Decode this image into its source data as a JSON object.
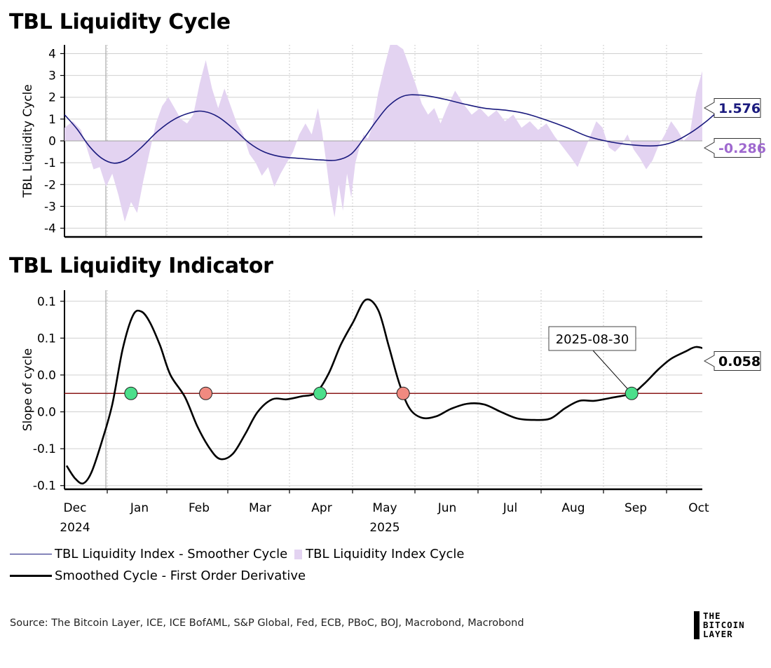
{
  "titles": {
    "top": "TBL Liquidity Cycle",
    "bottom": "TBL Liquidity Indicator"
  },
  "colors": {
    "smoother": "#1a1a7e",
    "cycle_fill": "#e3d3f1",
    "cycle_label": "#9f69cf",
    "derivative": "#000000",
    "zero_line": "#8b1a1a",
    "bullish_dot": "#4cdf8b",
    "bearish_dot": "#f08a80"
  },
  "time_axis": {
    "months": [
      "Dec",
      "Jan",
      "Feb",
      "Mar",
      "Apr",
      "May",
      "Jun",
      "Jul",
      "Aug",
      "Sep",
      "Oct"
    ],
    "years": [
      {
        "month": "Dec",
        "label": "2024"
      },
      {
        "month": "May",
        "label": "2025"
      }
    ]
  },
  "chart_data": [
    {
      "type": "area",
      "title": "TBL Liquidity Cycle",
      "ylabel": "TBL Liquidity Cycle",
      "ylim": [
        -4.4,
        4.4
      ],
      "yticks": [
        "4",
        "3",
        "2",
        "1",
        "0",
        "-1",
        "-2",
        "-3",
        "-4"
      ],
      "xlim": [
        "2024-11-30",
        "2025-10-03"
      ],
      "grid": true,
      "series": [
        {
          "name": "TBL Liquidity Index - Smoother Cycle",
          "type": "line",
          "last_value_label": "1.576",
          "points": [
            [
              "2024-11-30",
              1.2
            ],
            [
              "2024-12-06",
              0.55
            ],
            [
              "2024-12-12",
              -0.25
            ],
            [
              "2024-12-18",
              -0.8
            ],
            [
              "2024-12-24",
              -1.02
            ],
            [
              "2024-12-30",
              -0.85
            ],
            [
              "2025-01-06",
              -0.3
            ],
            [
              "2025-01-14",
              0.45
            ],
            [
              "2025-01-22",
              1.0
            ],
            [
              "2025-01-30",
              1.3
            ],
            [
              "2025-02-05",
              1.35
            ],
            [
              "2025-02-12",
              1.1
            ],
            [
              "2025-02-20",
              0.5
            ],
            [
              "2025-02-27",
              -0.1
            ],
            [
              "2025-03-06",
              -0.5
            ],
            [
              "2025-03-14",
              -0.72
            ],
            [
              "2025-03-23",
              -0.8
            ],
            [
              "2025-04-02",
              -0.87
            ],
            [
              "2025-04-10",
              -0.88
            ],
            [
              "2025-04-17",
              -0.6
            ],
            [
              "2025-04-23",
              0.1
            ],
            [
              "2025-04-29",
              0.9
            ],
            [
              "2025-05-05",
              1.6
            ],
            [
              "2025-05-12",
              2.05
            ],
            [
              "2025-05-20",
              2.1
            ],
            [
              "2025-05-30",
              1.95
            ],
            [
              "2025-06-10",
              1.7
            ],
            [
              "2025-06-20",
              1.5
            ],
            [
              "2025-07-01",
              1.4
            ],
            [
              "2025-07-10",
              1.25
            ],
            [
              "2025-07-20",
              0.95
            ],
            [
              "2025-07-30",
              0.6
            ],
            [
              "2025-08-09",
              0.2
            ],
            [
              "2025-08-20",
              -0.05
            ],
            [
              "2025-09-01",
              -0.2
            ],
            [
              "2025-09-11",
              -0.22
            ],
            [
              "2025-09-19",
              -0.05
            ],
            [
              "2025-09-27",
              0.35
            ],
            [
              "2025-10-05",
              0.9
            ],
            [
              "2025-10-13",
              1.576
            ]
          ]
        },
        {
          "name": "TBL Liquidity Index Cycle",
          "type": "area",
          "last_value_label": "-0.286",
          "points": [
            [
              "2024-11-30",
              0.6
            ],
            [
              "2024-12-04",
              0.9
            ],
            [
              "2024-12-08",
              0.5
            ],
            [
              "2024-12-11",
              -0.4
            ],
            [
              "2024-12-14",
              -1.3
            ],
            [
              "2024-12-17",
              -1.2
            ],
            [
              "2024-12-20",
              -2.1
            ],
            [
              "2024-12-23",
              -1.5
            ],
            [
              "2024-12-26",
              -2.5
            ],
            [
              "2024-12-29",
              -3.7
            ],
            [
              "2025-01-01",
              -2.8
            ],
            [
              "2025-01-04",
              -3.3
            ],
            [
              "2025-01-07",
              -1.8
            ],
            [
              "2025-01-10",
              -0.5
            ],
            [
              "2025-01-13",
              0.8
            ],
            [
              "2025-01-16",
              1.6
            ],
            [
              "2025-01-19",
              2.0
            ],
            [
              "2025-01-22",
              1.5
            ],
            [
              "2025-01-25",
              1.0
            ],
            [
              "2025-01-28",
              0.8
            ],
            [
              "2025-01-31",
              1.2
            ],
            [
              "2025-02-03",
              2.6
            ],
            [
              "2025-02-06",
              3.7
            ],
            [
              "2025-02-09",
              2.4
            ],
            [
              "2025-02-12",
              1.5
            ],
            [
              "2025-02-15",
              2.4
            ],
            [
              "2025-02-18",
              1.6
            ],
            [
              "2025-02-21",
              0.8
            ],
            [
              "2025-02-24",
              0.3
            ],
            [
              "2025-02-27",
              -0.6
            ],
            [
              "2025-03-02",
              -1.0
            ],
            [
              "2025-03-05",
              -1.6
            ],
            [
              "2025-03-08",
              -1.2
            ],
            [
              "2025-03-11",
              -2.1
            ],
            [
              "2025-03-14",
              -1.5
            ],
            [
              "2025-03-17",
              -1.0
            ],
            [
              "2025-03-20",
              -0.5
            ],
            [
              "2025-03-23",
              0.3
            ],
            [
              "2025-03-26",
              0.8
            ],
            [
              "2025-03-29",
              0.3
            ],
            [
              "2025-04-01",
              1.5
            ],
            [
              "2025-04-03",
              0.4
            ],
            [
              "2025-04-05",
              -1.0
            ],
            [
              "2025-04-07",
              -2.5
            ],
            [
              "2025-04-09",
              -3.5
            ],
            [
              "2025-04-11",
              -2.0
            ],
            [
              "2025-04-13",
              -3.2
            ],
            [
              "2025-04-15",
              -1.5
            ],
            [
              "2025-04-17",
              -2.6
            ],
            [
              "2025-04-19",
              -1.0
            ],
            [
              "2025-04-21",
              -0.3
            ],
            [
              "2025-04-23",
              0.3
            ],
            [
              "2025-04-25",
              0.1
            ],
            [
              "2025-04-27",
              0.6
            ],
            [
              "2025-04-30",
              2.2
            ],
            [
              "2025-05-03",
              3.4
            ],
            [
              "2025-05-06",
              4.5
            ],
            [
              "2025-05-09",
              4.4
            ],
            [
              "2025-05-12",
              4.2
            ],
            [
              "2025-05-15",
              3.4
            ],
            [
              "2025-05-18",
              2.6
            ],
            [
              "2025-05-21",
              1.7
            ],
            [
              "2025-05-24",
              1.2
            ],
            [
              "2025-05-27",
              1.5
            ],
            [
              "2025-05-30",
              0.8
            ],
            [
              "2025-06-02",
              1.5
            ],
            [
              "2025-06-06",
              2.3
            ],
            [
              "2025-06-10",
              1.7
            ],
            [
              "2025-06-14",
              1.2
            ],
            [
              "2025-06-18",
              1.5
            ],
            [
              "2025-06-22",
              1.1
            ],
            [
              "2025-06-26",
              1.4
            ],
            [
              "2025-06-30",
              0.9
            ],
            [
              "2025-07-04",
              1.2
            ],
            [
              "2025-07-08",
              0.6
            ],
            [
              "2025-07-12",
              0.9
            ],
            [
              "2025-07-16",
              0.5
            ],
            [
              "2025-07-20",
              0.8
            ],
            [
              "2025-07-24",
              0.2
            ],
            [
              "2025-07-28",
              -0.3
            ],
            [
              "2025-08-01",
              -0.8
            ],
            [
              "2025-08-04",
              -1.2
            ],
            [
              "2025-08-07",
              -0.5
            ],
            [
              "2025-08-10",
              0.2
            ],
            [
              "2025-08-13",
              0.9
            ],
            [
              "2025-08-16",
              0.6
            ],
            [
              "2025-08-19",
              -0.3
            ],
            [
              "2025-08-22",
              -0.5
            ],
            [
              "2025-08-25",
              -0.2
            ],
            [
              "2025-08-28",
              0.3
            ],
            [
              "2025-08-31",
              -0.4
            ],
            [
              "2025-09-03",
              -0.8
            ],
            [
              "2025-09-06",
              -1.3
            ],
            [
              "2025-09-09",
              -0.9
            ],
            [
              "2025-09-12",
              -0.2
            ],
            [
              "2025-09-15",
              0.3
            ],
            [
              "2025-09-18",
              0.9
            ],
            [
              "2025-09-21",
              0.5
            ],
            [
              "2025-09-24",
              0.0
            ],
            [
              "2025-09-27",
              0.3
            ],
            [
              "2025-09-30",
              2.2
            ],
            [
              "2025-10-03",
              3.2
            ],
            [
              "2025-10-06",
              2.5
            ],
            [
              "2025-10-09",
              1.8
            ],
            [
              "2025-10-12",
              1.2
            ],
            [
              "2025-10-13",
              -0.286
            ]
          ]
        }
      ]
    },
    {
      "type": "line",
      "title": "TBL Liquidity Indicator",
      "ylabel": "Slope of cycle",
      "ylim": [
        -0.105,
        0.165
      ],
      "yticks": [
        {
          "value": 0.15,
          "label": "0.1"
        },
        {
          "value": 0.1,
          "label": "0.1"
        },
        {
          "value": 0.05,
          "label": "0.0"
        },
        {
          "value": 0.0,
          "label": "0.0"
        },
        {
          "value": -0.05,
          "label": "-0.1"
        },
        {
          "value": -0.1,
          "label": "-0.1"
        }
      ],
      "xlim": [
        "2024-11-30",
        "2025-10-03"
      ],
      "grid": true,
      "zero_line": 0.025,
      "series": [
        {
          "name": "Smoothed Cycle - First Order Derivative",
          "last_value_label": "0.058",
          "points": [
            [
              "2024-12-01",
              -0.073
            ],
            [
              "2024-12-05",
              -0.09
            ],
            [
              "2024-12-09",
              -0.097
            ],
            [
              "2024-12-13",
              -0.082
            ],
            [
              "2024-12-18",
              -0.04
            ],
            [
              "2024-12-23",
              0.01
            ],
            [
              "2024-12-28",
              0.085
            ],
            [
              "2025-01-02",
              0.131
            ],
            [
              "2025-01-06",
              0.136
            ],
            [
              "2025-01-10",
              0.122
            ],
            [
              "2025-01-15",
              0.09
            ],
            [
              "2025-01-20",
              0.05
            ],
            [
              "2025-01-27",
              0.02
            ],
            [
              "2025-02-02",
              -0.02
            ],
            [
              "2025-02-08",
              -0.05
            ],
            [
              "2025-02-13",
              -0.064
            ],
            [
              "2025-02-19",
              -0.057
            ],
            [
              "2025-02-25",
              -0.03
            ],
            [
              "2025-03-03",
              0.0
            ],
            [
              "2025-03-10",
              0.017
            ],
            [
              "2025-03-17",
              0.017
            ],
            [
              "2025-03-24",
              0.021
            ],
            [
              "2025-03-31",
              0.026
            ],
            [
              "2025-04-06",
              0.051
            ],
            [
              "2025-04-12",
              0.091
            ],
            [
              "2025-04-18",
              0.122
            ],
            [
              "2025-04-24",
              0.152
            ],
            [
              "2025-04-30",
              0.138
            ],
            [
              "2025-05-05",
              0.09
            ],
            [
              "2025-05-10",
              0.04
            ],
            [
              "2025-05-15",
              0.005
            ],
            [
              "2025-05-21",
              -0.008
            ],
            [
              "2025-05-28",
              -0.006
            ],
            [
              "2025-06-04",
              0.004
            ],
            [
              "2025-06-12",
              0.011
            ],
            [
              "2025-06-20",
              0.01
            ],
            [
              "2025-06-28",
              0.0
            ],
            [
              "2025-07-06",
              -0.009
            ],
            [
              "2025-07-14",
              -0.011
            ],
            [
              "2025-07-22",
              -0.009
            ],
            [
              "2025-07-29",
              0.005
            ],
            [
              "2025-08-05",
              0.015
            ],
            [
              "2025-08-12",
              0.015
            ],
            [
              "2025-08-20",
              0.019
            ],
            [
              "2025-08-30",
              0.025
            ],
            [
              "2025-09-05",
              0.038
            ],
            [
              "2025-09-12",
              0.058
            ],
            [
              "2025-09-18",
              0.072
            ],
            [
              "2025-09-25",
              0.082
            ],
            [
              "2025-09-30",
              0.088
            ],
            [
              "2025-10-06",
              0.084
            ],
            [
              "2025-10-10",
              0.083
            ]
          ]
        }
      ],
      "crossings": [
        {
          "date": "2025-01-01",
          "kind": "bullish"
        },
        {
          "date": "2025-02-06",
          "kind": "bearish"
        },
        {
          "date": "2025-04-02",
          "kind": "bullish"
        },
        {
          "date": "2025-05-12",
          "kind": "bearish"
        },
        {
          "date": "2025-08-30",
          "kind": "bullish"
        }
      ],
      "annotation": {
        "text": "2025-08-30",
        "date": "2025-08-30"
      }
    }
  ],
  "legend": {
    "smoother_label": "TBL Liquidity Index - Smoother Cycle",
    "cycle_label": "TBL Liquidity Index Cycle",
    "derivative_label": "Smoothed Cycle - First Order Derivative"
  },
  "source": "Source: The Bitcoin Layer, ICE, ICE BofAML, S&P Global, Fed, ECB, PBoC, BOJ, Macrobond, Macrobond",
  "logo": {
    "line1": "THE",
    "line2": "BITCOIN",
    "line3": "LAYER"
  }
}
